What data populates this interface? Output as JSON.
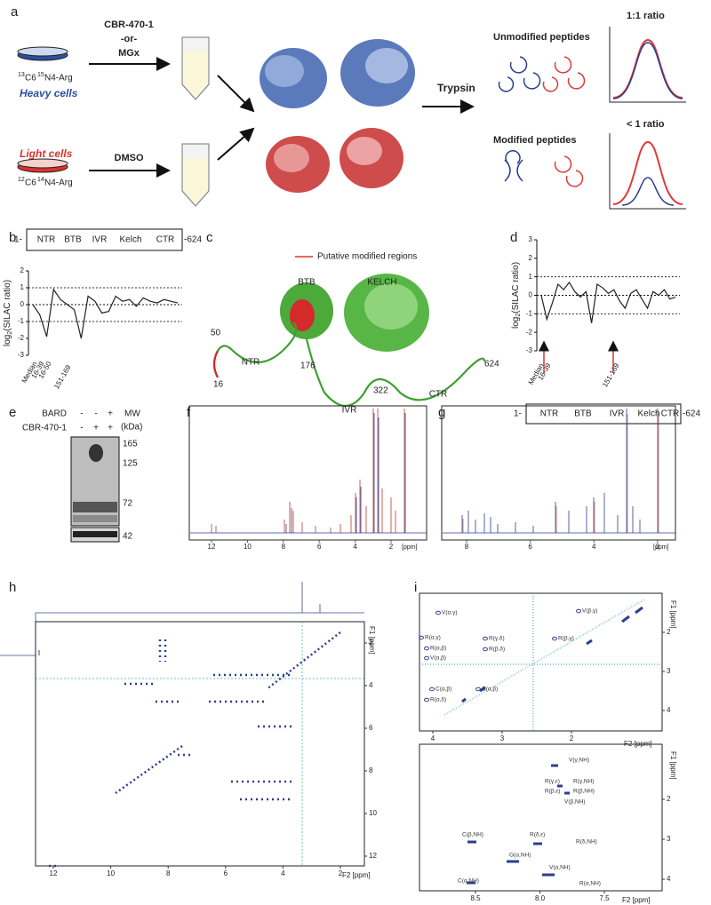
{
  "panel_a": {
    "label": "a",
    "heavy": {
      "c_mass": "13",
      "c": "C6",
      "n_mass": "15",
      "n": "N4-Arg",
      "name": "Heavy cells"
    },
    "light": {
      "c_mass": "12",
      "c": "C6",
      "n_mass": "14",
      "n": "N4-Arg",
      "name": "Light cells"
    },
    "treatment": [
      "CBR-470-1",
      "-or-",
      "MGx"
    ],
    "control": "DMSO",
    "enzyme": "Trypsin",
    "unmodified": "Unmodified peptides",
    "modified": "Modified peptides",
    "ratio_equal": "1:1 ratio",
    "ratio_less": "< 1 ratio"
  },
  "panel_b": {
    "label": "b",
    "domains": {
      "start": "1-",
      "names": [
        "NTR",
        "BTB",
        "IVR",
        "Kelch",
        "CTR"
      ],
      "end": "-624"
    },
    "ylabel": {
      "base": "log",
      "sub": "2",
      "rest": "(SILAC ratio)"
    },
    "ylim": [
      -3,
      2
    ],
    "yticks": [
      2,
      1,
      0,
      -1,
      -2,
      -3
    ],
    "reference_lines": [
      1,
      -1
    ],
    "values": [
      0.0,
      -0.6,
      -1.9,
      0.9,
      0.3,
      0.0,
      -0.3,
      -2.0,
      0.5,
      0.2,
      -0.5,
      -0.4,
      0.5,
      0.2,
      0.3,
      -0.1,
      0.4,
      0.2,
      0.1,
      0.3,
      0.2,
      0.1
    ],
    "annotations": [
      "Median",
      "16-39",
      "16-50",
      "151-169"
    ]
  },
  "panel_c": {
    "label": "c",
    "legend": "Putative modified regions",
    "domains": [
      "BTB",
      "KELCH",
      "NTR",
      "IVR",
      "CTR"
    ],
    "residues": [
      50,
      16,
      176,
      322,
      624
    ]
  },
  "panel_d": {
    "label": "d",
    "domains": {
      "start": "1-",
      "names": [
        "NTR",
        "BTB",
        "IVR",
        "Kelch",
        "CTR"
      ],
      "end": "-624"
    },
    "ylabel": {
      "base": "log",
      "sub": "2",
      "rest": "(SILAC ratio)"
    },
    "ylim": [
      -3,
      3
    ],
    "yticks": [
      3,
      2,
      1,
      0,
      -1,
      -2,
      -3
    ],
    "reference_lines": [
      1,
      -1
    ],
    "values": [
      0.0,
      -1.3,
      -0.4,
      0.6,
      0.3,
      0.7,
      0.2,
      -0.1,
      0.2,
      -1.5,
      0.6,
      0.4,
      0.1,
      0.3,
      -0.3,
      -0.7,
      0.1,
      0.3,
      -0.2,
      -0.7,
      0.2,
      0.0,
      0.3,
      -0.2,
      -0.1
    ],
    "annotations": [
      "Median",
      "16-39",
      "151-169"
    ]
  },
  "panel_e": {
    "label": "e",
    "rows": [
      {
        "name": "BARD",
        "lanes": [
          "-",
          "-",
          "+"
        ]
      },
      {
        "name": "CBR-470-1",
        "lanes": [
          "-",
          "+",
          "+"
        ]
      }
    ],
    "mw_label": "MW",
    "mw_unit": "(kDa)",
    "markers": [
      165,
      125,
      72,
      42
    ]
  },
  "panel_f": {
    "label": "f",
    "xticks": [
      12,
      10,
      8,
      6,
      4,
      2
    ],
    "xunit": "[ppm]"
  },
  "panel_g": {
    "label": "g",
    "xticks": [
      8,
      6,
      4,
      2
    ],
    "xunit": "[ppm]"
  },
  "panel_h": {
    "label": "h",
    "xticks": [
      12,
      10,
      8,
      6,
      4,
      2
    ],
    "yticks": [
      2,
      4,
      6,
      8,
      10,
      12
    ],
    "xlabel": "F2 [ppm]",
    "ylabel": "F1 [ppm]"
  },
  "panel_i": {
    "label": "i",
    "aliphatic": {
      "xticks": [
        4,
        3,
        2
      ],
      "yticks": [
        2,
        3,
        4
      ],
      "xlabel": "F2 [ppm]",
      "ylabel": "F1 [ppm]",
      "peaks": [
        "V(α,γ)",
        "V(β,γ)",
        "R(α,γ)",
        "R(α,β)",
        "V(α,β)",
        "R(γ,δ)",
        "R(β,δ)",
        "R(β,γ)",
        "C(α,β)",
        "R(α,δ)",
        "C(α,β)"
      ]
    },
    "amide": {
      "xticks": [
        8.5,
        {
          "value": 8,
          "label": "8.0"
        },
        7.5
      ],
      "yticks": [
        2,
        3,
        4
      ],
      "xlabel": "F2 [ppm]",
      "ylabel": "F1 [ppm]",
      "peaks": [
        "V(γ,NH)",
        "R(γ,ε)",
        "R(γ,NH)",
        "R(β,ε)",
        "R(β,NH)",
        "V(β,NH)",
        "C(β,NH)",
        "R(δ,ε)",
        "R(δ,NH)",
        "G(α,NH)",
        "V(α,NH)",
        "C(α,NH)",
        "R(α,NH)"
      ]
    }
  }
}
